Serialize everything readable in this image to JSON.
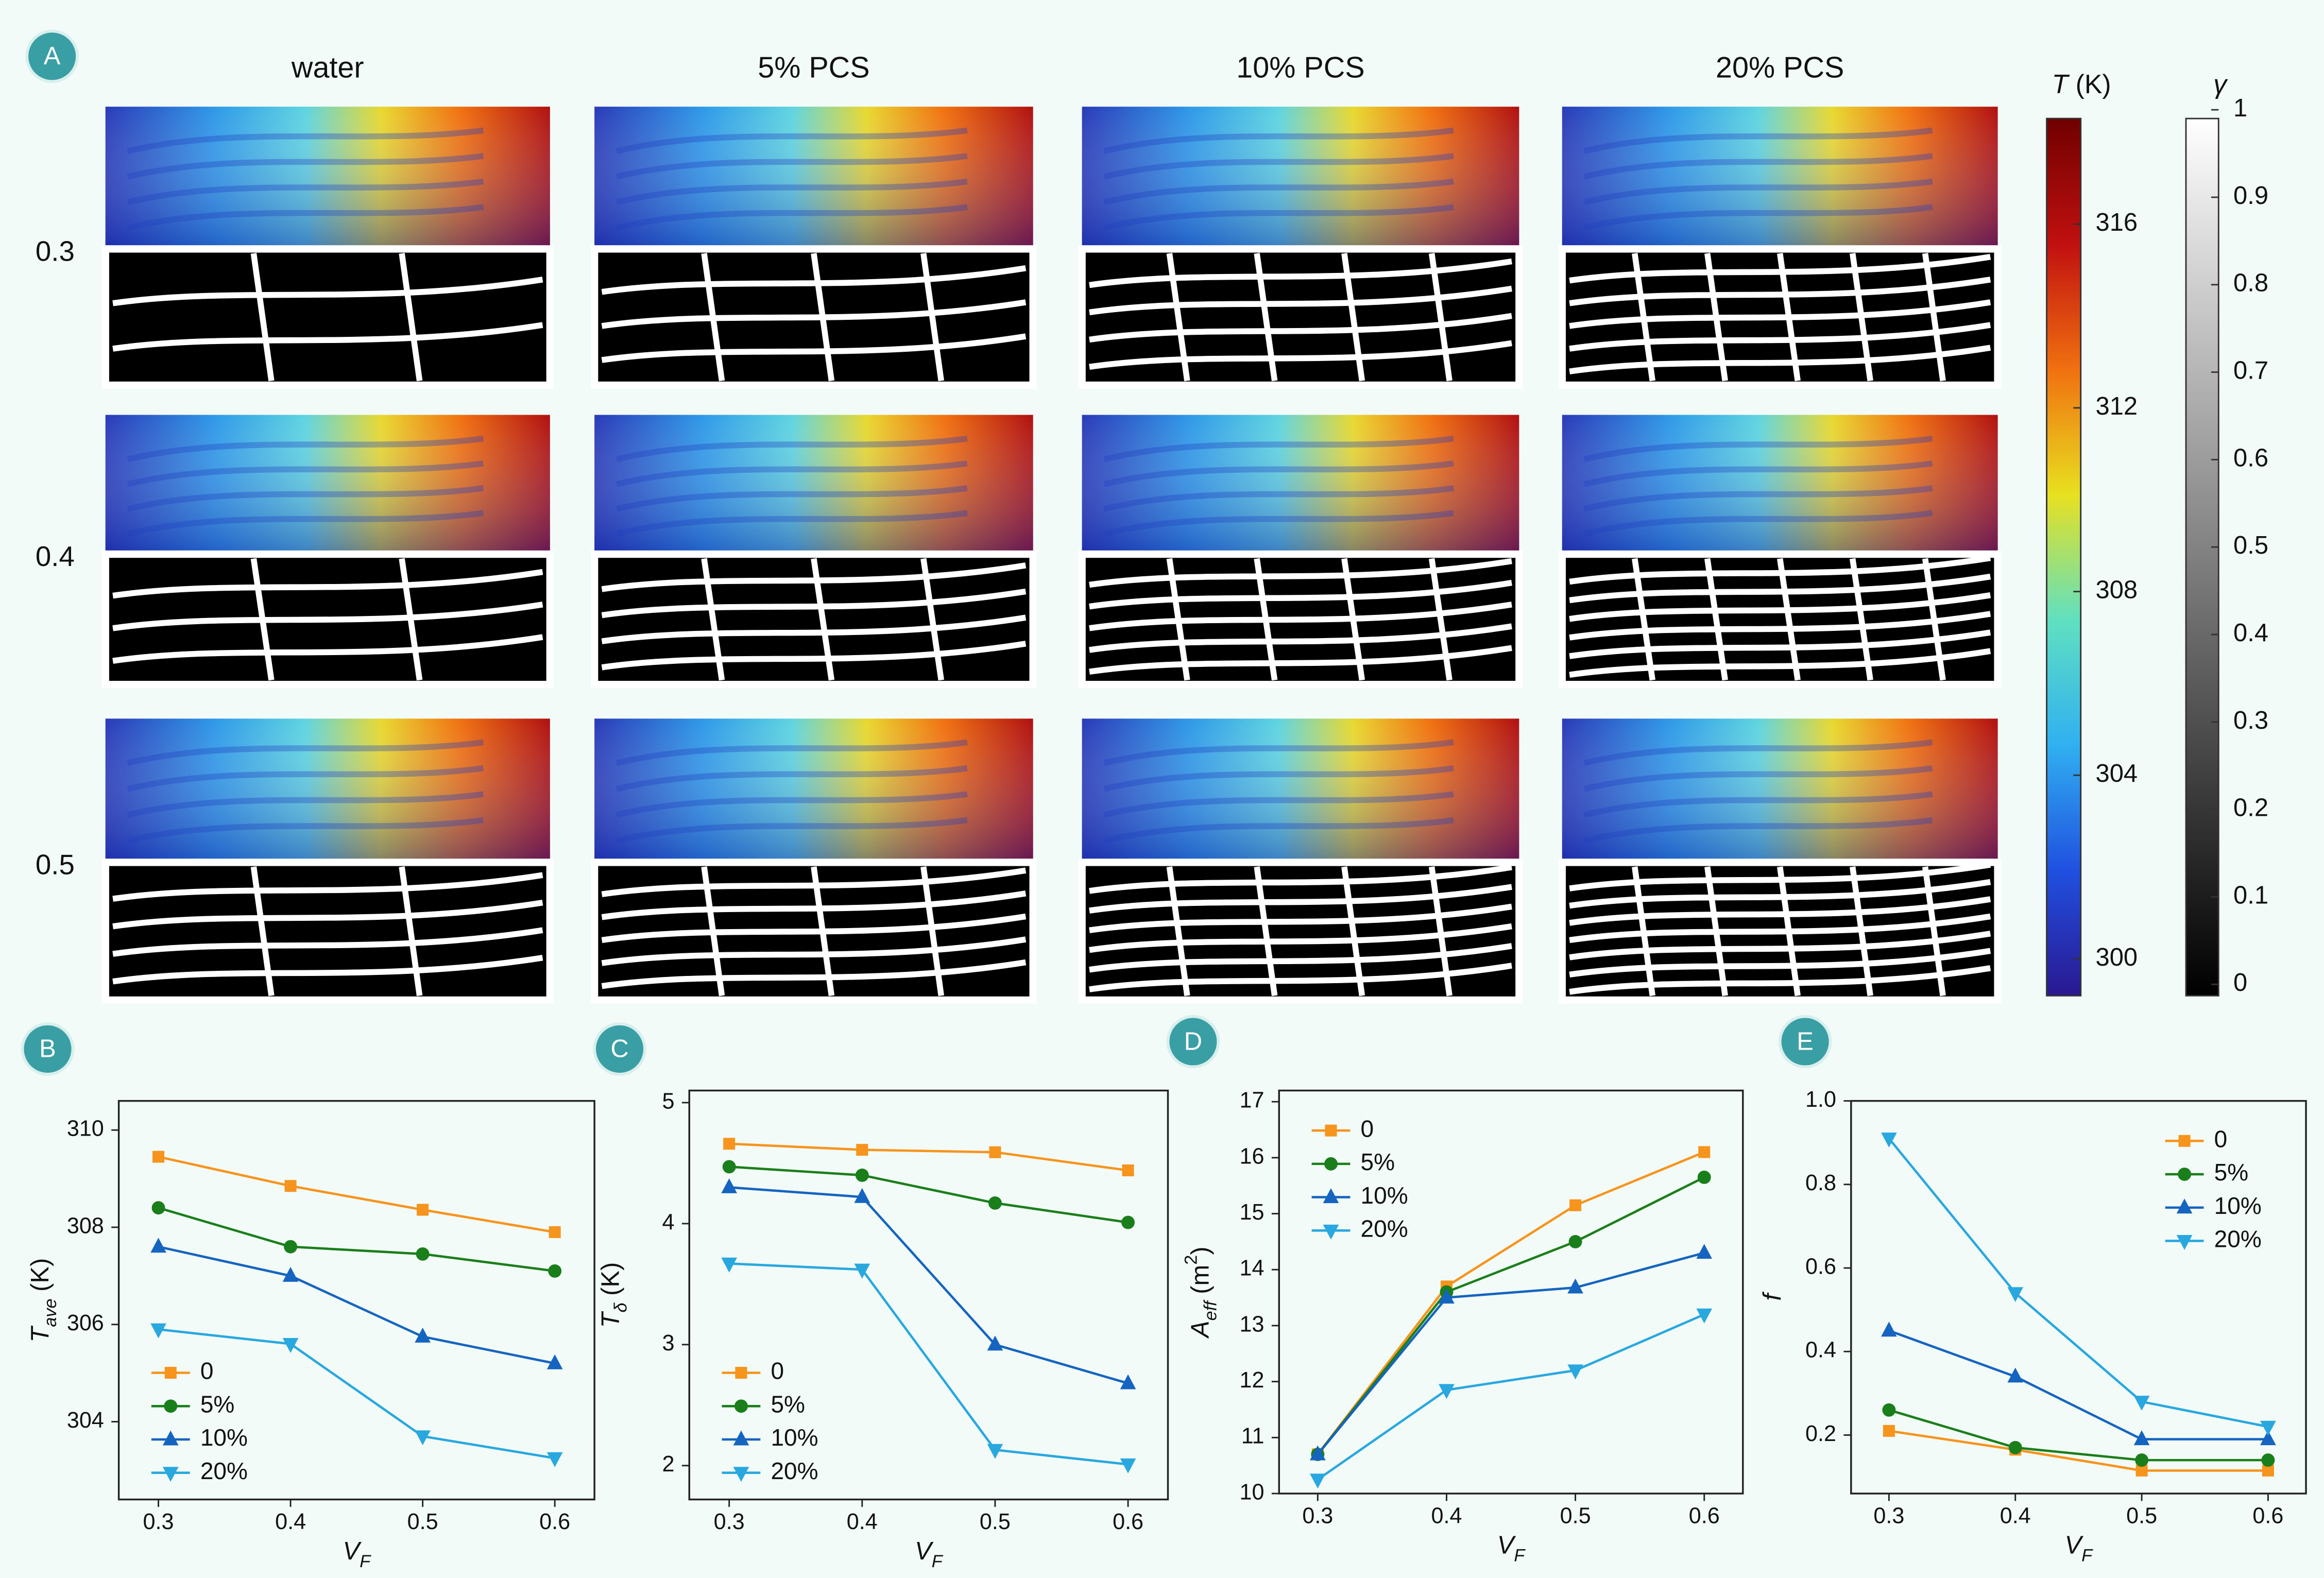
{
  "panel_labels": [
    "A",
    "B",
    "C",
    "D",
    "E"
  ],
  "maps": {
    "columns": [
      "water",
      "5% PCS",
      "10% PCS",
      "20% PCS"
    ],
    "rows": [
      "0.3",
      "0.4",
      "0.5"
    ]
  },
  "colorbars": [
    {
      "title": [
        {
          "text": "T",
          "style": "italic"
        },
        {
          "text": " (K)"
        }
      ],
      "lim": [
        299.2,
        318.3
      ],
      "ticks": [
        300,
        304,
        308,
        312,
        316
      ],
      "colors": [
        "#2a1890",
        "#2050e0",
        "#30b0f0",
        "#60e0c0",
        "#e8e020",
        "#f07010",
        "#c01010",
        "#700000"
      ]
    },
    {
      "title": [
        {
          "text": "γ",
          "style": "italic"
        }
      ],
      "lim": [
        -0.013,
        0.99
      ],
      "ticks": [
        0,
        0.1,
        0.2,
        0.3,
        0.4,
        0.5,
        0.6,
        0.7,
        0.8,
        0.9,
        1
      ],
      "colors": [
        "#000000",
        "#ffffff"
      ]
    }
  ],
  "chart_data": [
    {
      "type": "line",
      "x": [
        0.3,
        0.4,
        0.5,
        0.6
      ],
      "xlim": [
        0.27,
        0.63
      ],
      "xticks": [
        0.3,
        0.4,
        0.5,
        0.6
      ],
      "ylim": [
        302.4,
        310.6
      ],
      "yticks": [
        304,
        306,
        308,
        310
      ],
      "xlabel": [
        {
          "text": "V",
          "style": "italic"
        },
        {
          "text": "F",
          "style": "sub"
        }
      ],
      "ylabel": [
        {
          "text": "T",
          "style": "italic"
        },
        {
          "text": "ave",
          "style": "sub"
        },
        {
          "text": " (K)"
        }
      ],
      "legend": "lower left",
      "series": [
        {
          "name": "0",
          "color": "#f7941d",
          "marker": "square",
          "values": [
            309.45,
            308.85,
            308.36,
            307.9
          ]
        },
        {
          "name": "5%",
          "color": "#1a7f1a",
          "marker": "circle",
          "values": [
            308.4,
            307.6,
            307.45,
            307.1
          ]
        },
        {
          "name": "10%",
          "color": "#1565c0",
          "marker": "triangle-up",
          "values": [
            307.6,
            307.0,
            305.75,
            305.2
          ]
        },
        {
          "name": "20%",
          "color": "#29a8e0",
          "marker": "triangle-down",
          "values": [
            305.9,
            305.6,
            303.7,
            303.25
          ]
        }
      ]
    },
    {
      "type": "line",
      "x": [
        0.3,
        0.4,
        0.5,
        0.6
      ],
      "xlim": [
        0.27,
        0.63
      ],
      "xticks": [
        0.3,
        0.4,
        0.5,
        0.6
      ],
      "ylim": [
        1.72,
        5.1
      ],
      "yticks": [
        2,
        3,
        4,
        5
      ],
      "xlabel": [
        {
          "text": "V",
          "style": "italic"
        },
        {
          "text": "F",
          "style": "sub"
        }
      ],
      "ylabel": [
        {
          "text": "T",
          "style": "italic"
        },
        {
          "text": "δ",
          "style": "sub"
        },
        {
          "text": " (K)"
        }
      ],
      "legend": "lower left",
      "series": [
        {
          "name": "0",
          "color": "#f7941d",
          "marker": "square",
          "values": [
            4.66,
            4.61,
            4.59,
            4.44
          ]
        },
        {
          "name": "5%",
          "color": "#1a7f1a",
          "marker": "circle",
          "values": [
            4.47,
            4.4,
            4.17,
            4.01
          ]
        },
        {
          "name": "10%",
          "color": "#1565c0",
          "marker": "triangle-up",
          "values": [
            4.3,
            4.22,
            3.0,
            2.68
          ]
        },
        {
          "name": "20%",
          "color": "#29a8e0",
          "marker": "triangle-down",
          "values": [
            3.67,
            3.62,
            2.13,
            2.01
          ]
        }
      ]
    },
    {
      "type": "line",
      "x": [
        0.3,
        0.4,
        0.5,
        0.6
      ],
      "xlim": [
        0.27,
        0.63
      ],
      "xticks": [
        0.3,
        0.4,
        0.5,
        0.6
      ],
      "ylim": [
        10,
        17.2
      ],
      "yticks": [
        10,
        11,
        12,
        13,
        14,
        15,
        16,
        17
      ],
      "xlabel": [
        {
          "text": "V",
          "style": "italic"
        },
        {
          "text": "F",
          "style": "sub"
        }
      ],
      "ylabel": [
        {
          "text": "A",
          "style": "italic"
        },
        {
          "text": "eff",
          "style": "sub"
        },
        {
          "text": "  (m"
        },
        {
          "text": "2",
          "style": "sup"
        },
        {
          "text": ")"
        }
      ],
      "legend": "upper left",
      "series": [
        {
          "name": "0",
          "color": "#f7941d",
          "marker": "square",
          "values": [
            10.7,
            13.7,
            15.15,
            16.1
          ]
        },
        {
          "name": "5%",
          "color": "#1a7f1a",
          "marker": "circle",
          "values": [
            10.7,
            13.6,
            14.5,
            15.65
          ]
        },
        {
          "name": "10%",
          "color": "#1565c0",
          "marker": "triangle-up",
          "values": [
            10.7,
            13.5,
            13.68,
            14.3
          ]
        },
        {
          "name": "20%",
          "color": "#29a8e0",
          "marker": "triangle-down",
          "values": [
            10.25,
            11.85,
            12.2,
            13.2
          ]
        }
      ]
    },
    {
      "type": "line",
      "x": [
        0.3,
        0.4,
        0.5,
        0.6
      ],
      "xlim": [
        0.27,
        0.63
      ],
      "xticks": [
        0.3,
        0.4,
        0.5,
        0.6
      ],
      "ylim": [
        0.06,
        1.0
      ],
      "yticks": [
        0.2,
        0.4,
        0.6,
        0.8,
        {
          "value": 1,
          "label": "1.0"
        }
      ],
      "xlabel": [
        {
          "text": "V",
          "style": "italic"
        },
        {
          "text": "F",
          "style": "sub"
        }
      ],
      "ylabel": [
        {
          "text": "f",
          "style": "italic"
        }
      ],
      "legend": "upper right",
      "series": [
        {
          "name": "0",
          "color": "#f7941d",
          "marker": "square",
          "values": [
            0.21,
            0.165,
            0.115,
            0.115
          ]
        },
        {
          "name": "5%",
          "color": "#1a7f1a",
          "marker": "circle",
          "values": [
            0.26,
            0.17,
            0.14,
            0.14
          ]
        },
        {
          "name": "10%",
          "color": "#1565c0",
          "marker": "triangle-up",
          "values": [
            0.45,
            0.34,
            0.19,
            0.19
          ]
        },
        {
          "name": "20%",
          "color": "#29a8e0",
          "marker": "triangle-down",
          "values": [
            0.91,
            0.54,
            0.28,
            0.22
          ]
        }
      ]
    }
  ]
}
